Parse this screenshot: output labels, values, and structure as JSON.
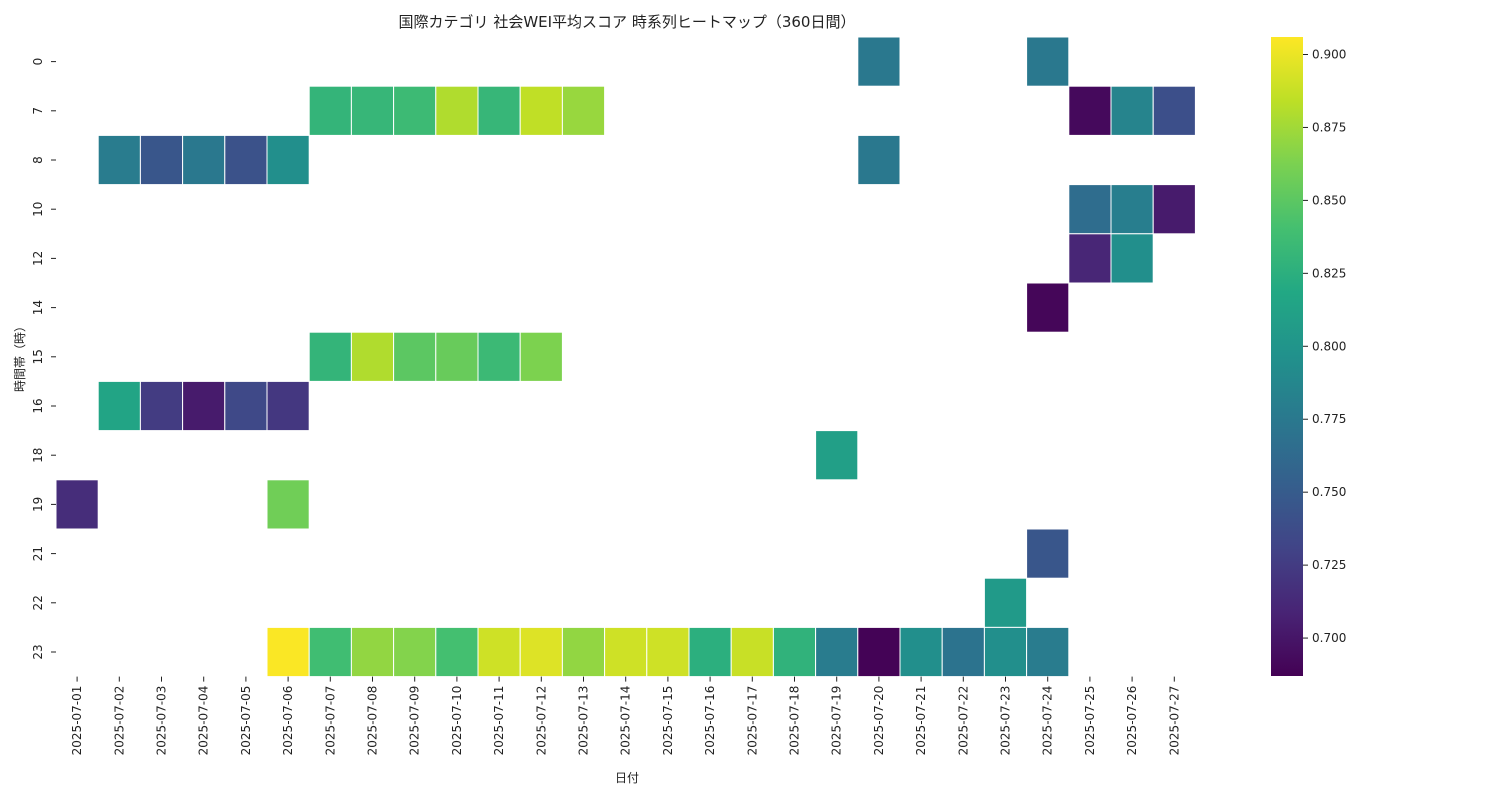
{
  "chart_data": {
    "type": "heatmap",
    "title": "国際カテゴリ 社会WEI平均スコア 時系列ヒートマップ（360日間）",
    "xlabel": "日付",
    "ylabel": "時間帯（時）",
    "x_categories": [
      "2025-07-01",
      "2025-07-02",
      "2025-07-03",
      "2025-07-04",
      "2025-07-05",
      "2025-07-06",
      "2025-07-07",
      "2025-07-08",
      "2025-07-09",
      "2025-07-10",
      "2025-07-11",
      "2025-07-12",
      "2025-07-13",
      "2025-07-14",
      "2025-07-15",
      "2025-07-16",
      "2025-07-17",
      "2025-07-18",
      "2025-07-19",
      "2025-07-20",
      "2025-07-21",
      "2025-07-22",
      "2025-07-23",
      "2025-07-24",
      "2025-07-25",
      "2025-07-26",
      "2025-07-27"
    ],
    "y_categories": [
      "0",
      "7",
      "8",
      "10",
      "12",
      "14",
      "15",
      "16",
      "18",
      "19",
      "21",
      "22",
      "23"
    ],
    "colormap": "viridis",
    "vmin": 0.687,
    "vmax": 0.906,
    "colorbar_ticks": [
      "0.700",
      "0.725",
      "0.750",
      "0.775",
      "0.800",
      "0.825",
      "0.850",
      "0.875",
      "0.900"
    ],
    "colorbar_tick_values": [
      0.7,
      0.725,
      0.75,
      0.775,
      0.8,
      0.825,
      0.85,
      0.875,
      0.9
    ],
    "cells": [
      {
        "x": "2025-07-20",
        "y": "0",
        "value": 0.775
      },
      {
        "x": "2025-07-24",
        "y": "0",
        "value": 0.775
      },
      {
        "x": "2025-07-07",
        "y": "7",
        "value": 0.83
      },
      {
        "x": "2025-07-08",
        "y": "7",
        "value": 0.832
      },
      {
        "x": "2025-07-09",
        "y": "7",
        "value": 0.836
      },
      {
        "x": "2025-07-10",
        "y": "7",
        "value": 0.88
      },
      {
        "x": "2025-07-11",
        "y": "7",
        "value": 0.832
      },
      {
        "x": "2025-07-12",
        "y": "7",
        "value": 0.885
      },
      {
        "x": "2025-07-13",
        "y": "7",
        "value": 0.872
      },
      {
        "x": "2025-07-25",
        "y": "7",
        "value": 0.692
      },
      {
        "x": "2025-07-26",
        "y": "7",
        "value": 0.785
      },
      {
        "x": "2025-07-27",
        "y": "7",
        "value": 0.74
      },
      {
        "x": "2025-07-02",
        "y": "8",
        "value": 0.778
      },
      {
        "x": "2025-07-03",
        "y": "8",
        "value": 0.745
      },
      {
        "x": "2025-07-04",
        "y": "8",
        "value": 0.775
      },
      {
        "x": "2025-07-05",
        "y": "8",
        "value": 0.742
      },
      {
        "x": "2025-07-06",
        "y": "8",
        "value": 0.795
      },
      {
        "x": "2025-07-20",
        "y": "8",
        "value": 0.775
      },
      {
        "x": "2025-07-25",
        "y": "10",
        "value": 0.765
      },
      {
        "x": "2025-07-26",
        "y": "10",
        "value": 0.78
      },
      {
        "x": "2025-07-27",
        "y": "10",
        "value": 0.703
      },
      {
        "x": "2025-07-25",
        "y": "12",
        "value": 0.71
      },
      {
        "x": "2025-07-26",
        "y": "12",
        "value": 0.795
      },
      {
        "x": "2025-07-24",
        "y": "14",
        "value": 0.69
      },
      {
        "x": "2025-07-07",
        "y": "15",
        "value": 0.83
      },
      {
        "x": "2025-07-08",
        "y": "15",
        "value": 0.88
      },
      {
        "x": "2025-07-09",
        "y": "15",
        "value": 0.85
      },
      {
        "x": "2025-07-10",
        "y": "15",
        "value": 0.855
      },
      {
        "x": "2025-07-11",
        "y": "15",
        "value": 0.835
      },
      {
        "x": "2025-07-12",
        "y": "15",
        "value": 0.863
      },
      {
        "x": "2025-07-02",
        "y": "16",
        "value": 0.815
      },
      {
        "x": "2025-07-03",
        "y": "16",
        "value": 0.725
      },
      {
        "x": "2025-07-04",
        "y": "16",
        "value": 0.703
      },
      {
        "x": "2025-07-05",
        "y": "16",
        "value": 0.735
      },
      {
        "x": "2025-07-06",
        "y": "16",
        "value": 0.722
      },
      {
        "x": "2025-07-19",
        "y": "18",
        "value": 0.81
      },
      {
        "x": "2025-07-01",
        "y": "19",
        "value": 0.715
      },
      {
        "x": "2025-07-06",
        "y": "19",
        "value": 0.858
      },
      {
        "x": "2025-07-24",
        "y": "21",
        "value": 0.745
      },
      {
        "x": "2025-07-23",
        "y": "22",
        "value": 0.805
      },
      {
        "x": "2025-07-06",
        "y": "23",
        "value": 0.905
      },
      {
        "x": "2025-07-07",
        "y": "23",
        "value": 0.838
      },
      {
        "x": "2025-07-08",
        "y": "23",
        "value": 0.87
      },
      {
        "x": "2025-07-09",
        "y": "23",
        "value": 0.865
      },
      {
        "x": "2025-07-10",
        "y": "23",
        "value": 0.84
      },
      {
        "x": "2025-07-11",
        "y": "23",
        "value": 0.89
      },
      {
        "x": "2025-07-12",
        "y": "23",
        "value": 0.895
      },
      {
        "x": "2025-07-13",
        "y": "23",
        "value": 0.87
      },
      {
        "x": "2025-07-14",
        "y": "23",
        "value": 0.89
      },
      {
        "x": "2025-07-15",
        "y": "23",
        "value": 0.89
      },
      {
        "x": "2025-07-16",
        "y": "23",
        "value": 0.825
      },
      {
        "x": "2025-07-17",
        "y": "23",
        "value": 0.888
      },
      {
        "x": "2025-07-18",
        "y": "23",
        "value": 0.828
      },
      {
        "x": "2025-07-19",
        "y": "23",
        "value": 0.778
      },
      {
        "x": "2025-07-20",
        "y": "23",
        "value": 0.688
      },
      {
        "x": "2025-07-21",
        "y": "23",
        "value": 0.795
      },
      {
        "x": "2025-07-22",
        "y": "23",
        "value": 0.77
      },
      {
        "x": "2025-07-23",
        "y": "23",
        "value": 0.795
      },
      {
        "x": "2025-07-24",
        "y": "23",
        "value": 0.778
      }
    ],
    "grid": false,
    "legend": "colorbar-right"
  }
}
